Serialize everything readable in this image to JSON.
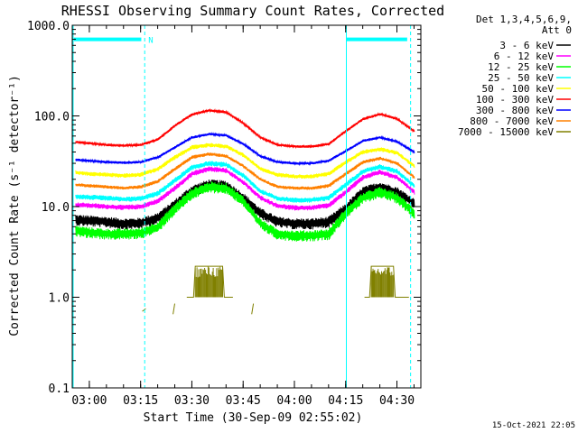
{
  "chart_data": {
    "type": "line",
    "title": "RHESSI Observing Summary Count Rates, Corrected",
    "xlabel": "Start Time (30-Sep-09 02:55:02)",
    "ylabel": "Corrected Count Rate (s⁻¹ detector⁻¹)",
    "yscale": "log",
    "ylim": [
      0.1,
      1000
    ],
    "xlim": [
      -5,
      97
    ],
    "x_units": "minutes after 03:00",
    "x_ticks": [
      {
        "value": 0,
        "label": "03:00"
      },
      {
        "value": 15,
        "label": "03:15"
      },
      {
        "value": 30,
        "label": "03:30"
      },
      {
        "value": 45,
        "label": "03:45"
      },
      {
        "value": 60,
        "label": "04:00"
      },
      {
        "value": 75,
        "label": "04:15"
      },
      {
        "value": 90,
        "label": "04:30"
      }
    ],
    "y_ticks": [
      {
        "value": 0.1,
        "label": "0.1"
      },
      {
        "value": 1,
        "label": "1.0"
      },
      {
        "value": 10,
        "label": "10.0"
      },
      {
        "value": 100,
        "label": "100.0"
      },
      {
        "value": 1000,
        "label": "1000.0"
      }
    ],
    "legend": {
      "placement": "right",
      "header": [
        "Det 1,3,4,5,6,9,",
        "Att 0"
      ]
    },
    "annotations": [
      {
        "text": "N",
        "x": 16.2,
        "y": 700
      }
    ],
    "timestamp": "15-Oct-2021 22:05",
    "t_grid": [
      -5,
      0,
      5,
      10,
      15,
      20,
      25,
      30,
      35,
      40,
      45,
      50,
      55,
      60,
      65,
      70,
      75,
      80,
      85,
      90,
      95
    ],
    "series": [
      {
        "name": "3 - 6 keV",
        "color": "#000000",
        "noise": 0.13,
        "values": [
          7.2,
          7.0,
          6.8,
          6.5,
          6.6,
          7.5,
          10.5,
          15,
          17.5,
          17,
          12.5,
          8.5,
          6.8,
          6.5,
          6.5,
          6.8,
          9.5,
          14.5,
          16.5,
          14.5,
          10.8
        ]
      },
      {
        "name": "6 - 12 keV",
        "color": "#ff00ff",
        "noise": 0.06,
        "values": [
          10.5,
          10.3,
          10,
          9.8,
          10,
          11.5,
          16,
          23,
          26,
          25,
          18.5,
          12.5,
          10.2,
          9.7,
          9.7,
          10.3,
          14.5,
          21,
          24,
          21,
          14.5
        ]
      },
      {
        "name": "12 - 25 keV",
        "color": "#00ff00",
        "noise": 0.13,
        "values": [
          5.5,
          5.2,
          5,
          5,
          5.1,
          6,
          9.5,
          14,
          16.5,
          16,
          11.5,
          6.5,
          5,
          4.8,
          4.8,
          5,
          8.5,
          12.5,
          14.5,
          12.5,
          8.5
        ]
      },
      {
        "name": "25 - 50 keV",
        "color": "#00ffff",
        "noise": 0.06,
        "values": [
          13,
          12.7,
          12.4,
          12,
          12.3,
          14,
          19.5,
          27,
          30,
          29,
          22,
          14.8,
          12.3,
          11.8,
          11.8,
          12.5,
          17.5,
          24.5,
          27.5,
          24.5,
          17
        ]
      },
      {
        "name": "50 - 100 keV",
        "color": "#ffff00",
        "noise": 0.05,
        "values": [
          24,
          23,
          22.5,
          22,
          22.5,
          26,
          35,
          45,
          48,
          46,
          37,
          26,
          22.5,
          21.5,
          21.5,
          23,
          31,
          40,
          43,
          39,
          28
        ]
      },
      {
        "name": "100 - 300 keV",
        "color": "#ff0000",
        "noise": 0.03,
        "values": [
          52,
          50,
          48,
          47,
          48,
          55,
          78,
          104,
          115,
          110,
          83,
          58,
          48,
          46,
          46,
          49,
          68,
          92,
          105,
          93,
          68
        ]
      },
      {
        "name": "300 - 800 keV",
        "color": "#0000ff",
        "noise": 0.03,
        "values": [
          33,
          32,
          31,
          30.5,
          31,
          35,
          45,
          58,
          63,
          61,
          49,
          36,
          31,
          30,
          30,
          32,
          41,
          53,
          58,
          52,
          40
        ]
      },
      {
        "name": "800 - 7000 keV",
        "color": "#ff8000",
        "noise": 0.04,
        "values": [
          17.5,
          17,
          16.5,
          16,
          16.5,
          19,
          26,
          35,
          38,
          36,
          28,
          20,
          16.5,
          16,
          16,
          17,
          23,
          31,
          34,
          30,
          21
        ]
      },
      {
        "name": "7000 - 15000 keV",
        "color": "#808000",
        "noise": 0.0,
        "segments": [
          {
            "x": [
              15.5,
              16.5
            ],
            "y": [
              0.7,
              0.75
            ]
          },
          {
            "x": [
              24.5,
              25.0
            ],
            "y": [
              0.65,
              0.85
            ]
          },
          {
            "x": [
              28.5,
              30.5,
              31.0,
              39.0,
              39.5,
              42.0
            ],
            "y": [
              1.0,
              1.0,
              2.2,
              2.2,
              1.0,
              1.0
            ]
          },
          {
            "x": [
              47.5,
              48.0
            ],
            "y": [
              0.65,
              0.85
            ]
          },
          {
            "x": [
              80.5,
              82.0,
              82.5,
              89.0,
              89.5,
              93.5
            ],
            "y": [
              1.0,
              1.0,
              2.2,
              2.2,
              1.0,
              1.0
            ]
          }
        ]
      }
    ],
    "vlines": [
      {
        "x": 16.2,
        "style": "dashed"
      },
      {
        "x": 75.2,
        "style": "solid"
      },
      {
        "x": 94.0,
        "style": "dashed"
      }
    ],
    "night_bars": [
      {
        "x0": -4.5,
        "x1": 15.2,
        "y": 700
      },
      {
        "x0": 75.2,
        "x1": 93.0,
        "y": 700
      }
    ],
    "colors": {
      "night_bar": "#00ffff",
      "vline": "#00ffff",
      "frame": "#000000"
    }
  }
}
